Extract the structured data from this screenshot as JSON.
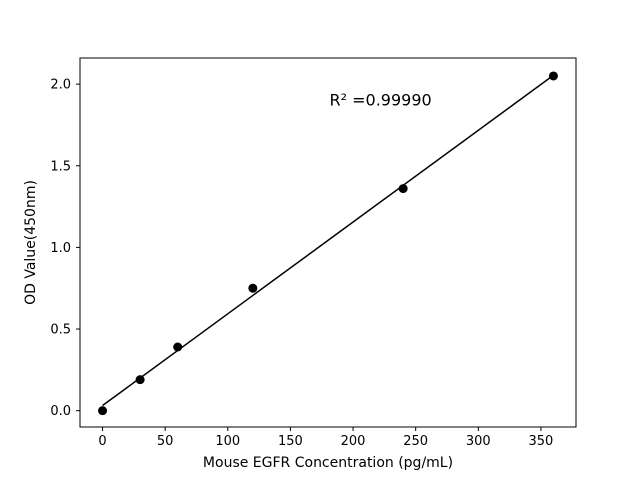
{
  "chart_data": {
    "type": "scatter",
    "title": "",
    "xlabel": "Mouse EGFR Concentration (pg/mL)",
    "ylabel": "OD Value(450nm)",
    "x": [
      0,
      30,
      60,
      120,
      240,
      360
    ],
    "y": [
      0.0,
      0.19,
      0.39,
      0.75,
      1.36,
      2.05
    ],
    "fit": {
      "type": "linear",
      "draw_range": [
        0,
        360
      ]
    },
    "annotation": {
      "text": "R² =0.99990",
      "x": 222,
      "y": 1.87
    },
    "xlim": [
      -18,
      378
    ],
    "ylim": [
      -0.1,
      2.16
    ],
    "x_ticks": {
      "values": [
        0,
        50,
        100,
        150,
        200,
        250,
        300,
        350
      ],
      "labels": [
        "0",
        "50",
        "100",
        "150",
        "200",
        "250",
        "300",
        "350"
      ]
    },
    "y_ticks": {
      "values": [
        0,
        0.5,
        1.0,
        1.5,
        2.0
      ],
      "labels": [
        "0.0",
        "0.5",
        "1.0",
        "1.5",
        "2.0"
      ]
    },
    "grid": false,
    "legend": null,
    "marker_color": "#000000",
    "line_color": "#000000",
    "axis_color": "#000000",
    "background": "#ffffff"
  }
}
